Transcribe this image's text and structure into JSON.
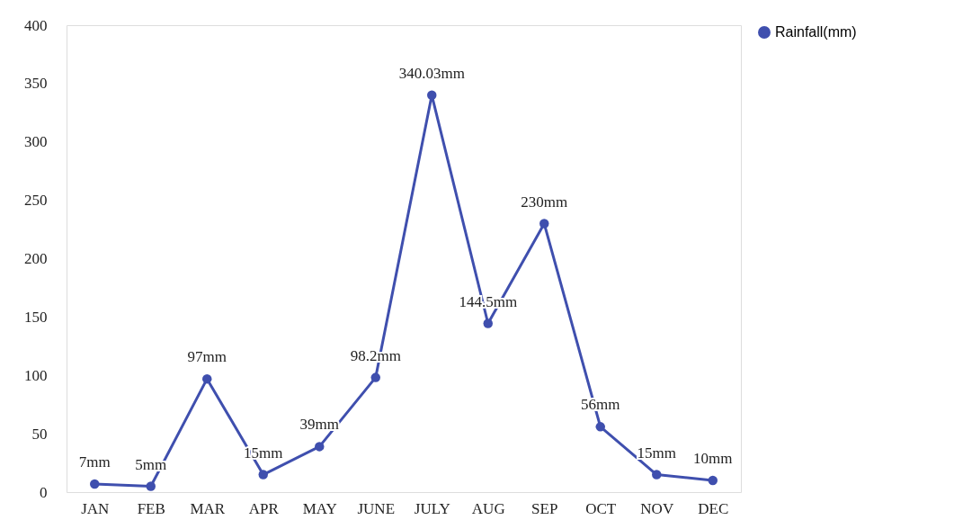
{
  "chart_data": {
    "type": "line",
    "categories": [
      "JAN",
      "FEB",
      "MAR",
      "APR",
      "MAY",
      "JUNE",
      "JULY",
      "AUG",
      "SEP",
      "OCT",
      "NOV",
      "DEC"
    ],
    "series": [
      {
        "name": "Rainfall(mm)",
        "color": "#3f4fae",
        "values": [
          7,
          5,
          97,
          15,
          39,
          98.2,
          340.03,
          144.5,
          230,
          56,
          15,
          10
        ],
        "value_labels": [
          "7mm",
          "5mm",
          "97mm",
          "15mm",
          "39mm",
          "98.2mm",
          "340.03mm",
          "144.5mm",
          "230mm",
          "56mm",
          "15mm",
          "10mm"
        ]
      }
    ],
    "ylim": [
      0,
      400
    ],
    "yticks": [
      0,
      50,
      100,
      150,
      200,
      250,
      300,
      350,
      400
    ],
    "grid": false,
    "legend": "right",
    "marker": "circle",
    "line_style": "solid"
  }
}
